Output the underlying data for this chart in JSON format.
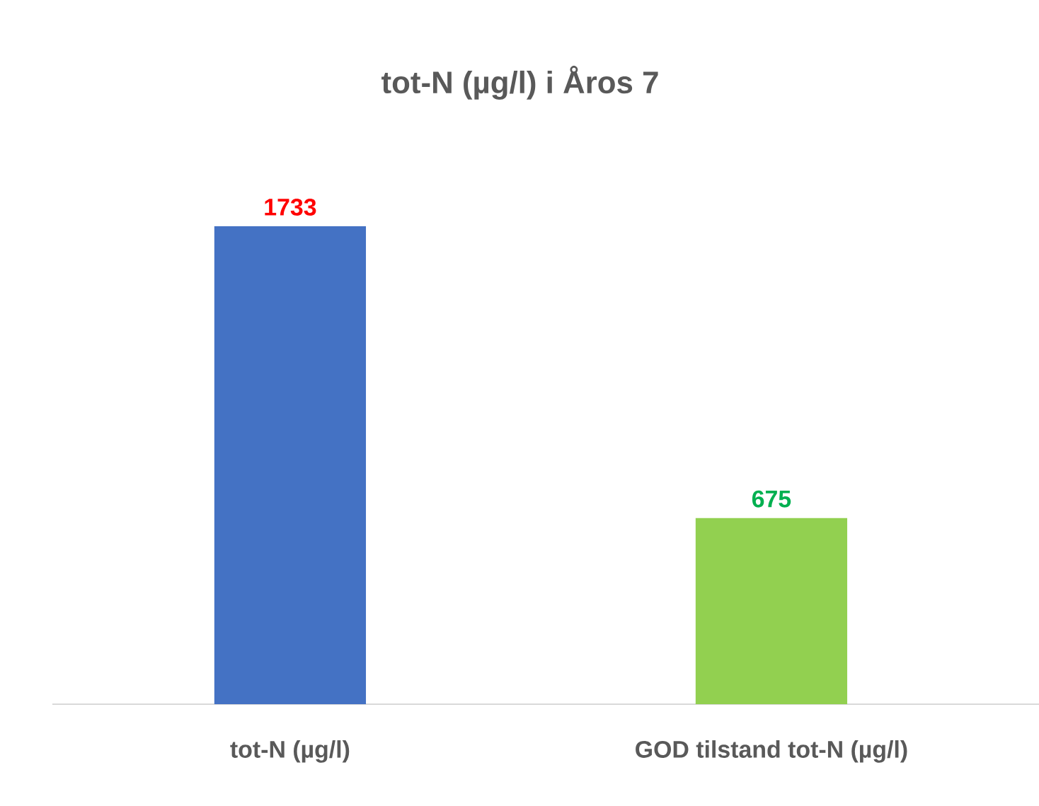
{
  "chart_data": {
    "type": "bar",
    "title": "tot-N (µg/l) i Åros 7",
    "categories": [
      "tot-N (µg/l)",
      "GOD tilstand tot-N (µg/l)"
    ],
    "values": [
      1733,
      675
    ],
    "colors": [
      "#4472c4",
      "#92d050"
    ],
    "data_labels": true
  }
}
